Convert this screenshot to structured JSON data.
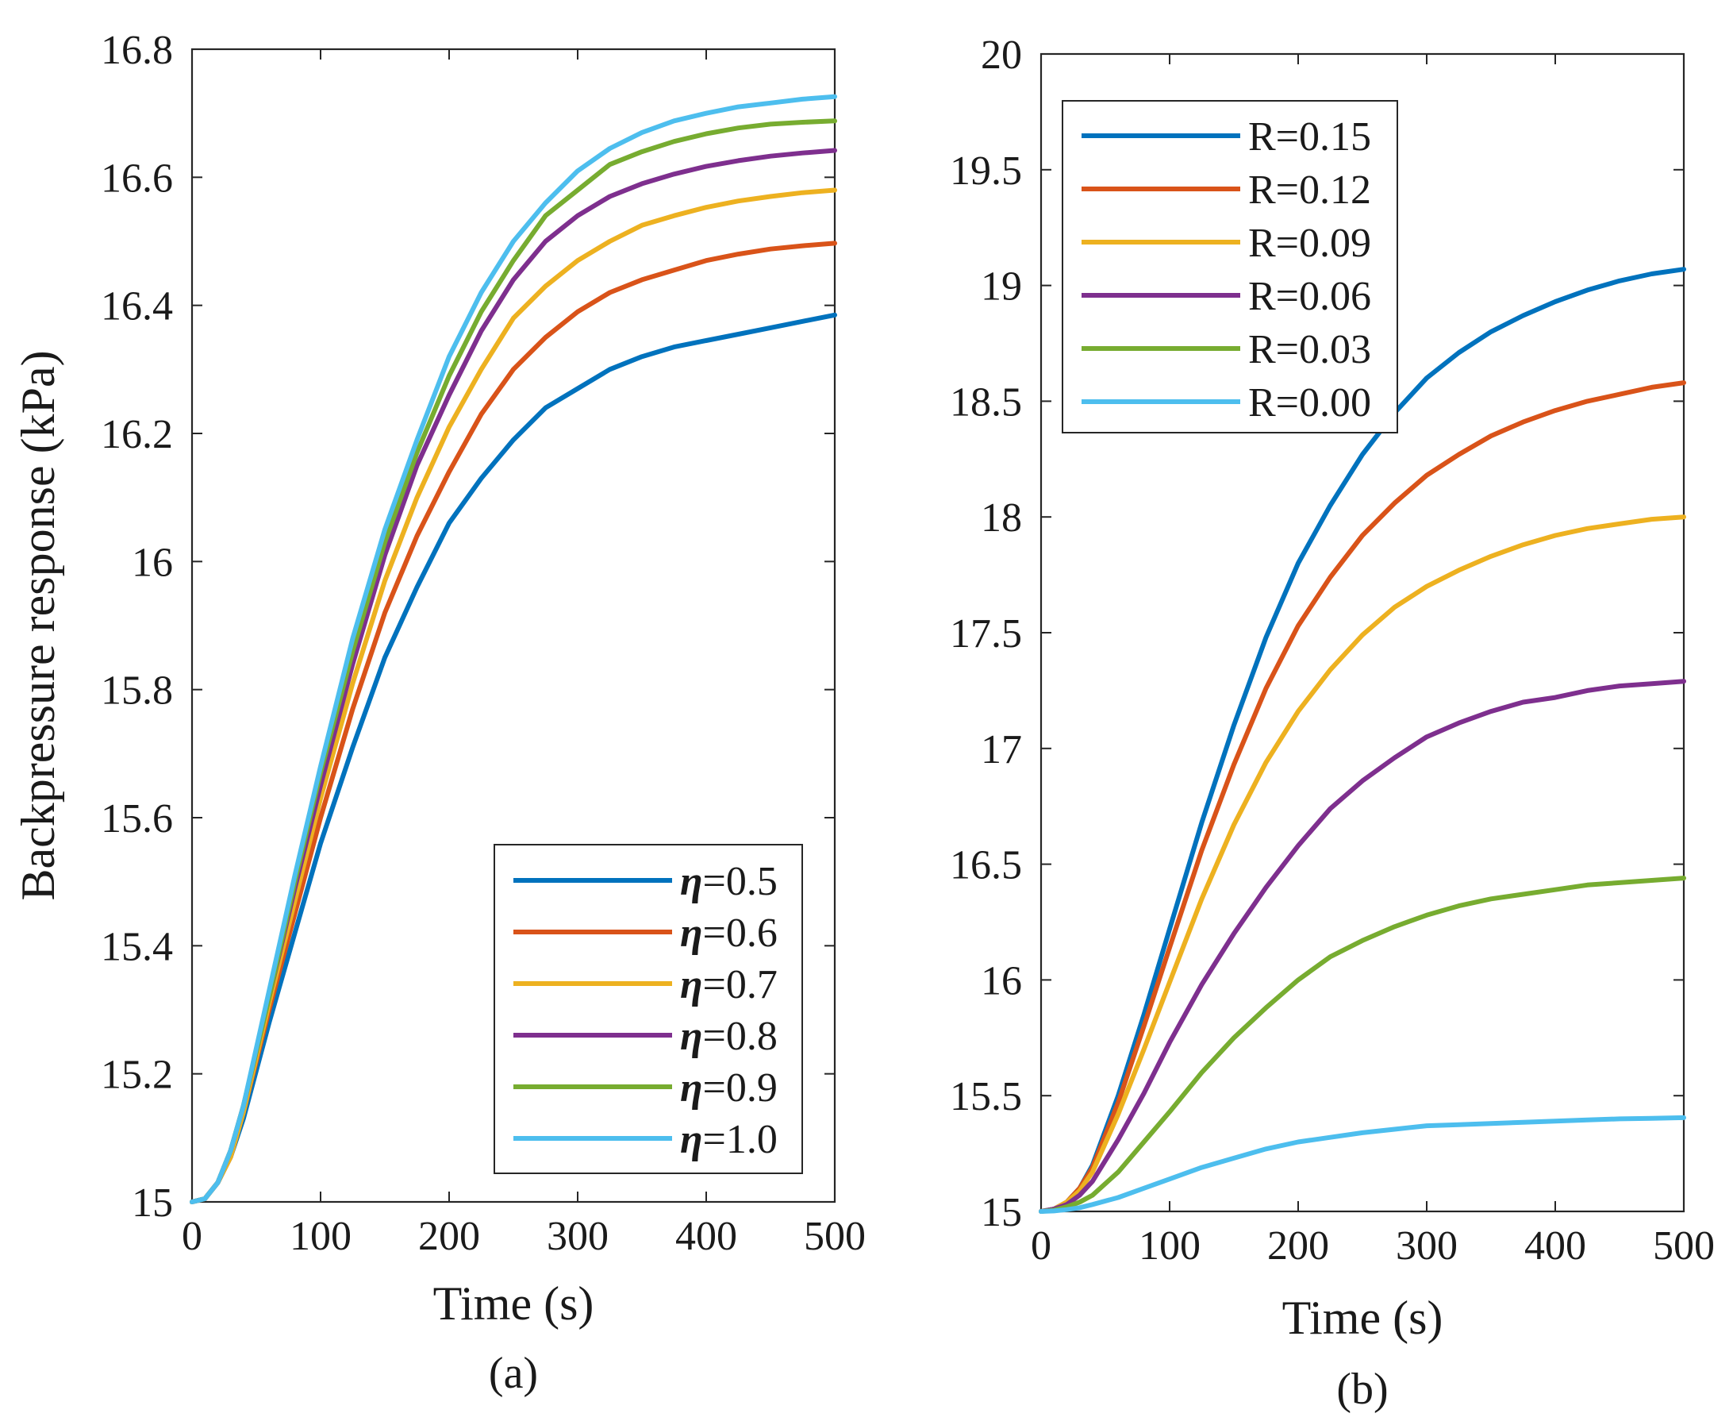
{
  "chart_data": [
    {
      "type": "line",
      "panel_label": "(a)",
      "xlabel": "Time (s)",
      "ylabel": "Backpressure response (kPa)",
      "xlim": [
        0,
        500
      ],
      "ylim": [
        15,
        16.8
      ],
      "xticks": [
        0,
        100,
        200,
        300,
        400,
        500
      ],
      "xtick_labels": [
        "0",
        "100",
        "200",
        "300",
        "400",
        "500"
      ],
      "yticks": [
        15,
        15.2,
        15.4,
        15.6,
        15.8,
        16,
        16.2,
        16.4,
        16.6,
        16.8
      ],
      "ytick_labels": [
        "15",
        "15.2",
        "15.4",
        "15.6",
        "15.8",
        "16",
        "16.2",
        "16.4",
        "16.6",
        "16.8"
      ],
      "grid": false,
      "legend_position": "bottom-right",
      "legend_symbol": "η",
      "x": [
        0,
        10,
        20,
        30,
        40,
        60,
        80,
        100,
        125,
        150,
        175,
        200,
        225,
        250,
        275,
        300,
        325,
        350,
        375,
        400,
        425,
        450,
        475,
        500
      ],
      "series": [
        {
          "name": "=0.5",
          "color": "#0072BD",
          "values": [
            15.0,
            15.005,
            15.03,
            15.07,
            15.13,
            15.28,
            15.42,
            15.56,
            15.71,
            15.85,
            15.96,
            16.06,
            16.13,
            16.19,
            16.24,
            16.27,
            16.3,
            16.32,
            16.335,
            16.345,
            16.355,
            16.365,
            16.375,
            16.385
          ]
        },
        {
          "name": "=0.6",
          "color": "#D95319",
          "values": [
            15.0,
            15.005,
            15.03,
            15.07,
            15.14,
            15.3,
            15.45,
            15.6,
            15.77,
            15.92,
            16.04,
            16.14,
            16.23,
            16.3,
            16.35,
            16.39,
            16.42,
            16.44,
            16.455,
            16.47,
            16.48,
            16.488,
            16.493,
            16.497
          ]
        },
        {
          "name": "=0.7",
          "color": "#EDB120",
          "values": [
            15.0,
            15.005,
            15.03,
            15.07,
            15.14,
            15.31,
            15.47,
            15.63,
            15.81,
            15.97,
            16.1,
            16.21,
            16.3,
            16.38,
            16.43,
            16.47,
            16.5,
            16.525,
            16.54,
            16.553,
            16.563,
            16.57,
            16.576,
            16.58
          ]
        },
        {
          "name": "=0.8",
          "color": "#7E2F8E",
          "values": [
            15.0,
            15.005,
            15.03,
            15.08,
            15.15,
            15.32,
            15.49,
            15.65,
            15.84,
            16.01,
            16.15,
            16.26,
            16.36,
            16.44,
            16.5,
            16.54,
            16.57,
            16.59,
            16.605,
            16.617,
            16.626,
            16.633,
            16.638,
            16.642
          ]
        },
        {
          "name": "=0.9",
          "color": "#77AC30",
          "values": [
            15.0,
            15.005,
            15.03,
            15.08,
            15.15,
            15.32,
            15.5,
            15.67,
            15.86,
            16.03,
            16.17,
            16.29,
            16.39,
            16.47,
            16.54,
            16.58,
            16.62,
            16.64,
            16.656,
            16.668,
            16.677,
            16.683,
            16.686,
            16.688
          ]
        },
        {
          "name": "=1.0",
          "color": "#4DBEEE",
          "values": [
            15.0,
            15.005,
            15.03,
            15.08,
            15.15,
            15.33,
            15.51,
            15.68,
            15.88,
            16.05,
            16.19,
            16.32,
            16.42,
            16.5,
            16.56,
            16.61,
            16.645,
            16.67,
            16.688,
            16.7,
            16.71,
            16.716,
            16.722,
            16.726
          ]
        }
      ]
    },
    {
      "type": "line",
      "panel_label": "(b)",
      "xlabel": "Time (s)",
      "ylabel": "",
      "xlim": [
        0,
        500
      ],
      "ylim": [
        15,
        20
      ],
      "xticks": [
        0,
        100,
        200,
        300,
        400,
        500
      ],
      "xtick_labels": [
        "0",
        "100",
        "200",
        "300",
        "400",
        "500"
      ],
      "yticks": [
        15,
        15.5,
        16,
        16.5,
        17,
        17.5,
        18,
        18.5,
        19,
        19.5,
        20
      ],
      "ytick_labels": [
        "15",
        "15.5",
        "16",
        "16.5",
        "17",
        "17.5",
        "18",
        "18.5",
        "19",
        "19.5",
        "20"
      ],
      "grid": false,
      "legend_position": "top-left",
      "x": [
        0,
        10,
        20,
        30,
        40,
        60,
        80,
        100,
        125,
        150,
        175,
        200,
        225,
        250,
        275,
        300,
        325,
        350,
        375,
        400,
        425,
        450,
        475,
        500
      ],
      "series": [
        {
          "name": "R=0.15",
          "color": "#0072BD",
          "values": [
            15.0,
            15.01,
            15.04,
            15.1,
            15.2,
            15.5,
            15.85,
            16.22,
            16.68,
            17.1,
            17.48,
            17.8,
            18.05,
            18.27,
            18.45,
            18.6,
            18.71,
            18.8,
            18.87,
            18.93,
            18.98,
            19.02,
            19.05,
            19.07
          ]
        },
        {
          "name": "R=0.12",
          "color": "#D95319",
          "values": [
            15.0,
            15.01,
            15.04,
            15.1,
            15.19,
            15.47,
            15.8,
            16.14,
            16.56,
            16.93,
            17.26,
            17.53,
            17.74,
            17.92,
            18.06,
            18.18,
            18.27,
            18.35,
            18.41,
            18.46,
            18.5,
            18.53,
            18.56,
            18.58
          ]
        },
        {
          "name": "R=0.09",
          "color": "#EDB120",
          "values": [
            15.0,
            15.01,
            15.04,
            15.09,
            15.17,
            15.42,
            15.7,
            15.99,
            16.35,
            16.67,
            16.94,
            17.16,
            17.34,
            17.49,
            17.61,
            17.7,
            17.77,
            17.83,
            17.88,
            17.92,
            17.95,
            17.97,
            17.99,
            18.0
          ]
        },
        {
          "name": "R=0.06",
          "color": "#7E2F8E",
          "values": [
            15.0,
            15.01,
            15.03,
            15.07,
            15.13,
            15.31,
            15.51,
            15.73,
            15.98,
            16.2,
            16.4,
            16.58,
            16.74,
            16.86,
            16.96,
            17.05,
            17.11,
            17.16,
            17.2,
            17.22,
            17.25,
            17.27,
            17.28,
            17.29
          ]
        },
        {
          "name": "R=0.03",
          "color": "#77AC30",
          "values": [
            15.0,
            15.005,
            15.02,
            15.04,
            15.07,
            15.17,
            15.3,
            15.43,
            15.6,
            15.75,
            15.88,
            16.0,
            16.1,
            16.17,
            16.23,
            16.28,
            16.32,
            16.35,
            16.37,
            16.39,
            16.41,
            16.42,
            16.43,
            16.44
          ]
        },
        {
          "name": "R=0.00",
          "color": "#4DBEEE",
          "values": [
            15.0,
            15.002,
            15.008,
            15.016,
            15.03,
            15.06,
            15.1,
            15.14,
            15.19,
            15.23,
            15.27,
            15.3,
            15.32,
            15.34,
            15.355,
            15.37,
            15.375,
            15.38,
            15.385,
            15.39,
            15.395,
            15.4,
            15.402,
            15.405
          ]
        }
      ]
    }
  ]
}
